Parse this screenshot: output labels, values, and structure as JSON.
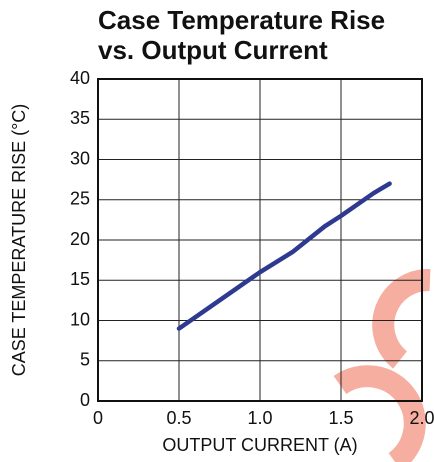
{
  "chart_data": {
    "type": "line",
    "title": [
      "Case Temperature Rise",
      "vs. Output Current"
    ],
    "x_label": "OUTPUT CURRENT (A)",
    "y_label": "CASE TEMPERATURE RISE (°C)",
    "x": [
      0.5,
      0.75,
      1.0,
      1.2,
      1.4,
      1.5,
      1.7,
      1.8
    ],
    "series": [
      {
        "name": null,
        "color": "#2e3a8f",
        "values": [
          9,
          12.5,
          16,
          18.5,
          21.7,
          23,
          25.8,
          27
        ]
      }
    ],
    "xlim": [
      0,
      2
    ],
    "xticks": [
      0,
      0.5,
      {
        "value": 1,
        "label": "1.0"
      },
      1.5,
      {
        "value": 2,
        "label": "2.0"
      }
    ],
    "ylim": [
      0,
      40
    ],
    "yticks": [
      0,
      5,
      10,
      15,
      20,
      25,
      30,
      35,
      40
    ],
    "grid": true
  }
}
